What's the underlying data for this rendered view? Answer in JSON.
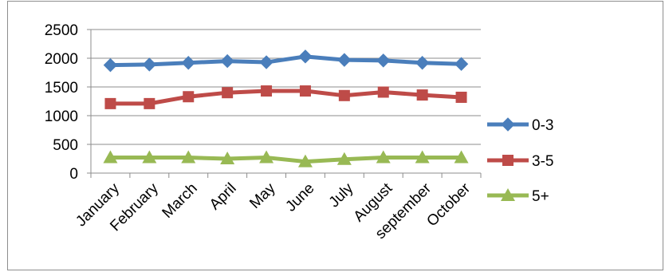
{
  "chart_data": {
    "type": "line",
    "title": "",
    "xlabel": "",
    "ylabel": "",
    "categories": [
      "January",
      "February",
      "March",
      "April",
      "May",
      "June",
      "July",
      "August",
      "september",
      "October"
    ],
    "ylim": [
      0,
      2500
    ],
    "yticks": [
      0,
      500,
      1000,
      1500,
      2000,
      2500
    ],
    "grid": true,
    "legend_placement": "right",
    "series": [
      {
        "name": "0-3",
        "marker": "diamond",
        "color": "#4a7ebb",
        "values": [
          1880,
          1890,
          1920,
          1950,
          1930,
          2030,
          1970,
          1960,
          1920,
          1900
        ]
      },
      {
        "name": "3-5",
        "marker": "square",
        "color": "#be4b48",
        "values": [
          1210,
          1210,
          1330,
          1400,
          1430,
          1430,
          1350,
          1410,
          1360,
          1320
        ]
      },
      {
        "name": "5+",
        "marker": "triangle",
        "color": "#98b954",
        "values": [
          270,
          270,
          270,
          250,
          270,
          200,
          240,
          270,
          270,
          270
        ]
      }
    ]
  }
}
